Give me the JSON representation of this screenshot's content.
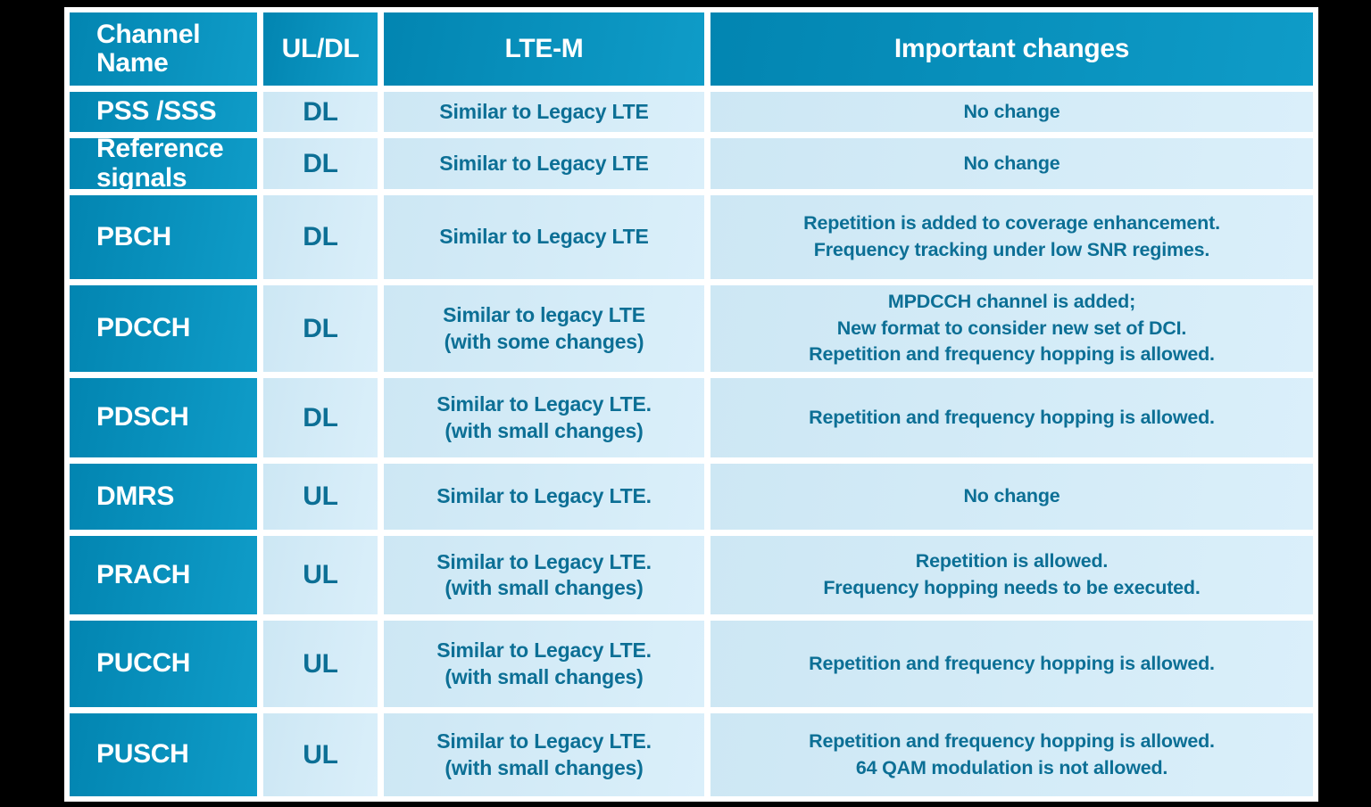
{
  "table": {
    "columns": [
      {
        "label": "Channel Name"
      },
      {
        "label": "UL/DL"
      },
      {
        "label": "LTE-M"
      },
      {
        "label": "Important changes"
      }
    ],
    "rows": [
      {
        "channel": "PSS /SSS",
        "uldl": "DL",
        "ltem": [
          "Similar to Legacy LTE"
        ],
        "changes": [
          "No change"
        ]
      },
      {
        "channel": "Reference signals",
        "uldl": "DL",
        "ltem": [
          "Similar to Legacy LTE"
        ],
        "changes": [
          "No change"
        ]
      },
      {
        "channel": "PBCH",
        "uldl": "DL",
        "ltem": [
          "Similar to Legacy LTE"
        ],
        "changes": [
          "Repetition is added to coverage enhancement.",
          "Frequency tracking under low SNR regimes."
        ]
      },
      {
        "channel": "PDCCH",
        "uldl": "DL",
        "ltem": [
          "Similar to legacy LTE",
          "(with some changes)"
        ],
        "changes": [
          "MPDCCH channel is added;",
          "New format to consider new set of DCI.",
          "Repetition and frequency hopping is allowed."
        ]
      },
      {
        "channel": "PDSCH",
        "uldl": "DL",
        "ltem": [
          "Similar to Legacy LTE.",
          "(with small changes)"
        ],
        "changes": [
          "Repetition and frequency hopping is allowed."
        ]
      },
      {
        "channel": "DMRS",
        "uldl": "UL",
        "ltem": [
          "Similar to Legacy LTE."
        ],
        "changes": [
          "No change"
        ]
      },
      {
        "channel": "PRACH",
        "uldl": "UL",
        "ltem": [
          "Similar to Legacy LTE.",
          "(with small changes)"
        ],
        "changes": [
          "Repetition is allowed.",
          "Frequency hopping needs to be executed."
        ]
      },
      {
        "channel": "PUCCH",
        "uldl": "UL",
        "ltem": [
          "Similar to Legacy LTE.",
          "(with small changes)"
        ],
        "changes": [
          "Repetition and frequency hopping is allowed."
        ]
      },
      {
        "channel": "PUSCH",
        "uldl": "UL",
        "ltem": [
          "Similar to Legacy LTE.",
          "(with small changes)"
        ],
        "changes": [
          "Repetition and frequency hopping is allowed.",
          "64 QAM modulation is not allowed."
        ]
      }
    ]
  },
  "colors": {
    "page_background": "#000000",
    "grid_lines": "#ffffff",
    "header_teal_dark": "#0285b1",
    "header_teal_light": "#0f9cc8",
    "cell_light_blue": "#d3ebf7",
    "text_on_teal": "#ffffff",
    "text_dark_teal": "#0c6f95"
  }
}
